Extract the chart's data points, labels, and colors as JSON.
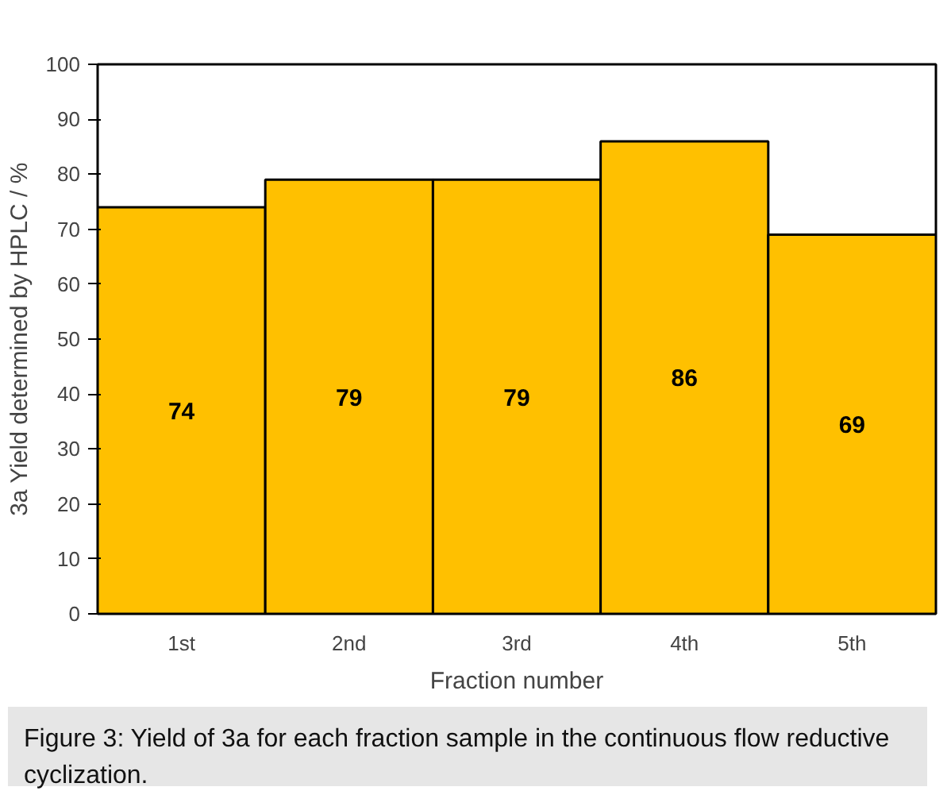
{
  "chart_data": {
    "type": "bar",
    "xlabel": "Fraction number",
    "ylabel": "3a Yield determined by HPLC / %",
    "categories": [
      "1st",
      "2nd",
      "3rd",
      "4th",
      "5th"
    ],
    "values": [
      74,
      79,
      79,
      86,
      69
    ],
    "color": "#ffc000",
    "ylim": [
      0,
      100
    ],
    "yticks": [
      0,
      10,
      20,
      30,
      40,
      50,
      60,
      70,
      80,
      90,
      100
    ],
    "data_labels": true,
    "grid": false,
    "annotations": [
      "Figure 3: Yield of 3a for each fraction sample in the continuous flow reductive cyclization."
    ]
  }
}
